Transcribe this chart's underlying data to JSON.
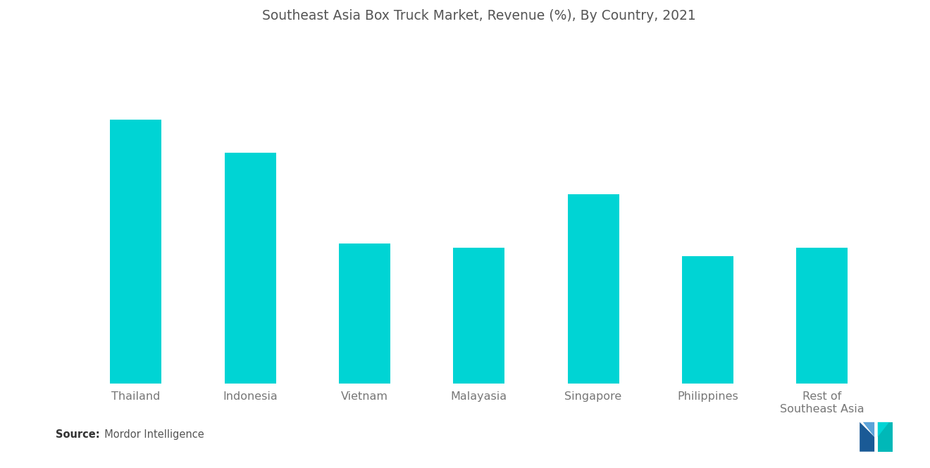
{
  "title": "Southeast Asia Box Truck Market, Revenue (%), By Country, 2021",
  "categories": [
    "Thailand",
    "Indonesia",
    "Vietnam",
    "Malayasia",
    "Singapore",
    "Philippines",
    "Rest of\nSoutheast Asia"
  ],
  "values": [
    32,
    28,
    17,
    16.5,
    23,
    15.5,
    16.5
  ],
  "bar_color": "#00D4D4",
  "background_color": "#ffffff",
  "title_fontsize": 13.5,
  "tick_fontsize": 11.5,
  "source_label": "Source:",
  "source_detail": "  Mordor Intelligence",
  "bar_width": 0.45,
  "ylim": [
    0,
    42
  ],
  "title_color": "#555555",
  "tick_color": "#777777",
  "source_bold_color": "#333333",
  "source_color": "#555555"
}
